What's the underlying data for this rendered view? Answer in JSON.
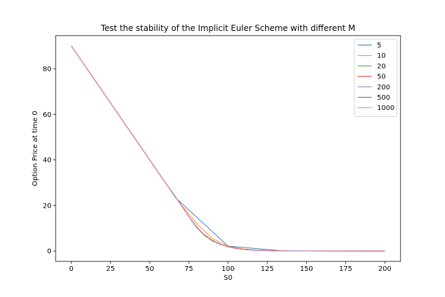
{
  "chart_data": {
    "type": "line",
    "title": "Test the stability of the Implicit Euler Scheme with different M",
    "xlabel": "S0",
    "ylabel": "Option Price at time 0",
    "xlim": [
      -10,
      210
    ],
    "ylim": [
      -4.5,
      94.5
    ],
    "xticks": [
      0,
      25,
      50,
      75,
      100,
      125,
      150,
      175,
      200
    ],
    "yticks": [
      0,
      20,
      40,
      60,
      80
    ],
    "grid": false,
    "legend_position": "top-right",
    "series": [
      {
        "name": "5",
        "color": "#1f77b4",
        "points": [
          [
            0,
            90
          ],
          [
            66.7,
            23.3
          ],
          [
            100,
            2.2
          ],
          [
            133.3,
            0.2
          ],
          [
            166.7,
            0.05
          ],
          [
            200,
            0
          ]
        ]
      },
      {
        "name": "10",
        "color": "#ff7f0e",
        "points": [
          [
            0,
            90
          ],
          [
            60,
            30
          ],
          [
            70,
            20.5
          ],
          [
            80,
            12
          ],
          [
            90,
            5.5
          ],
          [
            100,
            2.1
          ],
          [
            110,
            0.9
          ],
          [
            120,
            0.4
          ],
          [
            130,
            0.2
          ],
          [
            140,
            0.1
          ],
          [
            160,
            0.05
          ],
          [
            200,
            0
          ]
        ]
      },
      {
        "name": "20",
        "color": "#2ca02c",
        "points": [
          [
            0,
            90
          ],
          [
            60,
            30
          ],
          [
            65,
            25.3
          ],
          [
            70,
            20.2
          ],
          [
            75,
            15
          ],
          [
            80,
            10.3
          ],
          [
            85,
            6.8
          ],
          [
            90,
            4.4
          ],
          [
            95,
            2.9
          ],
          [
            100,
            1.9
          ],
          [
            105,
            1.2
          ],
          [
            110,
            0.8
          ],
          [
            120,
            0.35
          ],
          [
            130,
            0.15
          ],
          [
            140,
            0.08
          ],
          [
            160,
            0.03
          ],
          [
            200,
            0
          ]
        ]
      },
      {
        "name": "50",
        "color": "#d62728",
        "points": [
          [
            0,
            90
          ],
          [
            60,
            30
          ],
          [
            64,
            26.2
          ],
          [
            68,
            22.3
          ],
          [
            72,
            18.2
          ],
          [
            76,
            14.2
          ],
          [
            80,
            10.6
          ],
          [
            84,
            7.7
          ],
          [
            88,
            5.6
          ],
          [
            92,
            4
          ],
          [
            96,
            2.8
          ],
          [
            100,
            1.9
          ],
          [
            104,
            1.3
          ],
          [
            108,
            0.9
          ],
          [
            112,
            0.6
          ],
          [
            120,
            0.3
          ],
          [
            132,
            0.1
          ],
          [
            148,
            0.04
          ],
          [
            200,
            0
          ]
        ]
      },
      {
        "name": "200",
        "color": "#9467bd",
        "points": [
          [
            0,
            90
          ],
          [
            60,
            30
          ],
          [
            64,
            26.2
          ],
          [
            68,
            22.3
          ],
          [
            72,
            18.2
          ],
          [
            76,
            14.2
          ],
          [
            80,
            10.6
          ],
          [
            84,
            7.7
          ],
          [
            88,
            5.6
          ],
          [
            92,
            4
          ],
          [
            96,
            2.8
          ],
          [
            100,
            1.9
          ],
          [
            104,
            1.3
          ],
          [
            108,
            0.9
          ],
          [
            112,
            0.6
          ],
          [
            120,
            0.3
          ],
          [
            132,
            0.1
          ],
          [
            148,
            0.04
          ],
          [
            200,
            0
          ]
        ]
      },
      {
        "name": "500",
        "color": "#8c564b",
        "points": [
          [
            0,
            90
          ],
          [
            60,
            30
          ],
          [
            64,
            26.2
          ],
          [
            68,
            22.3
          ],
          [
            72,
            18.2
          ],
          [
            76,
            14.2
          ],
          [
            80,
            10.6
          ],
          [
            84,
            7.7
          ],
          [
            88,
            5.6
          ],
          [
            92,
            4
          ],
          [
            96,
            2.8
          ],
          [
            100,
            1.9
          ],
          [
            104,
            1.3
          ],
          [
            108,
            0.9
          ],
          [
            112,
            0.6
          ],
          [
            120,
            0.3
          ],
          [
            132,
            0.1
          ],
          [
            148,
            0.04
          ],
          [
            200,
            0
          ]
        ]
      },
      {
        "name": "1000",
        "color": "#e377c2",
        "points": [
          [
            0,
            90
          ],
          [
            60,
            30
          ],
          [
            64,
            26.2
          ],
          [
            68,
            22.3
          ],
          [
            72,
            18.2
          ],
          [
            76,
            14.2
          ],
          [
            80,
            10.6
          ],
          [
            84,
            7.7
          ],
          [
            88,
            5.6
          ],
          [
            92,
            4
          ],
          [
            96,
            2.8
          ],
          [
            100,
            1.9
          ],
          [
            104,
            1.3
          ],
          [
            108,
            0.9
          ],
          [
            112,
            0.6
          ],
          [
            120,
            0.3
          ],
          [
            132,
            0.1
          ],
          [
            148,
            0.04
          ],
          [
            200,
            0
          ]
        ]
      }
    ]
  }
}
